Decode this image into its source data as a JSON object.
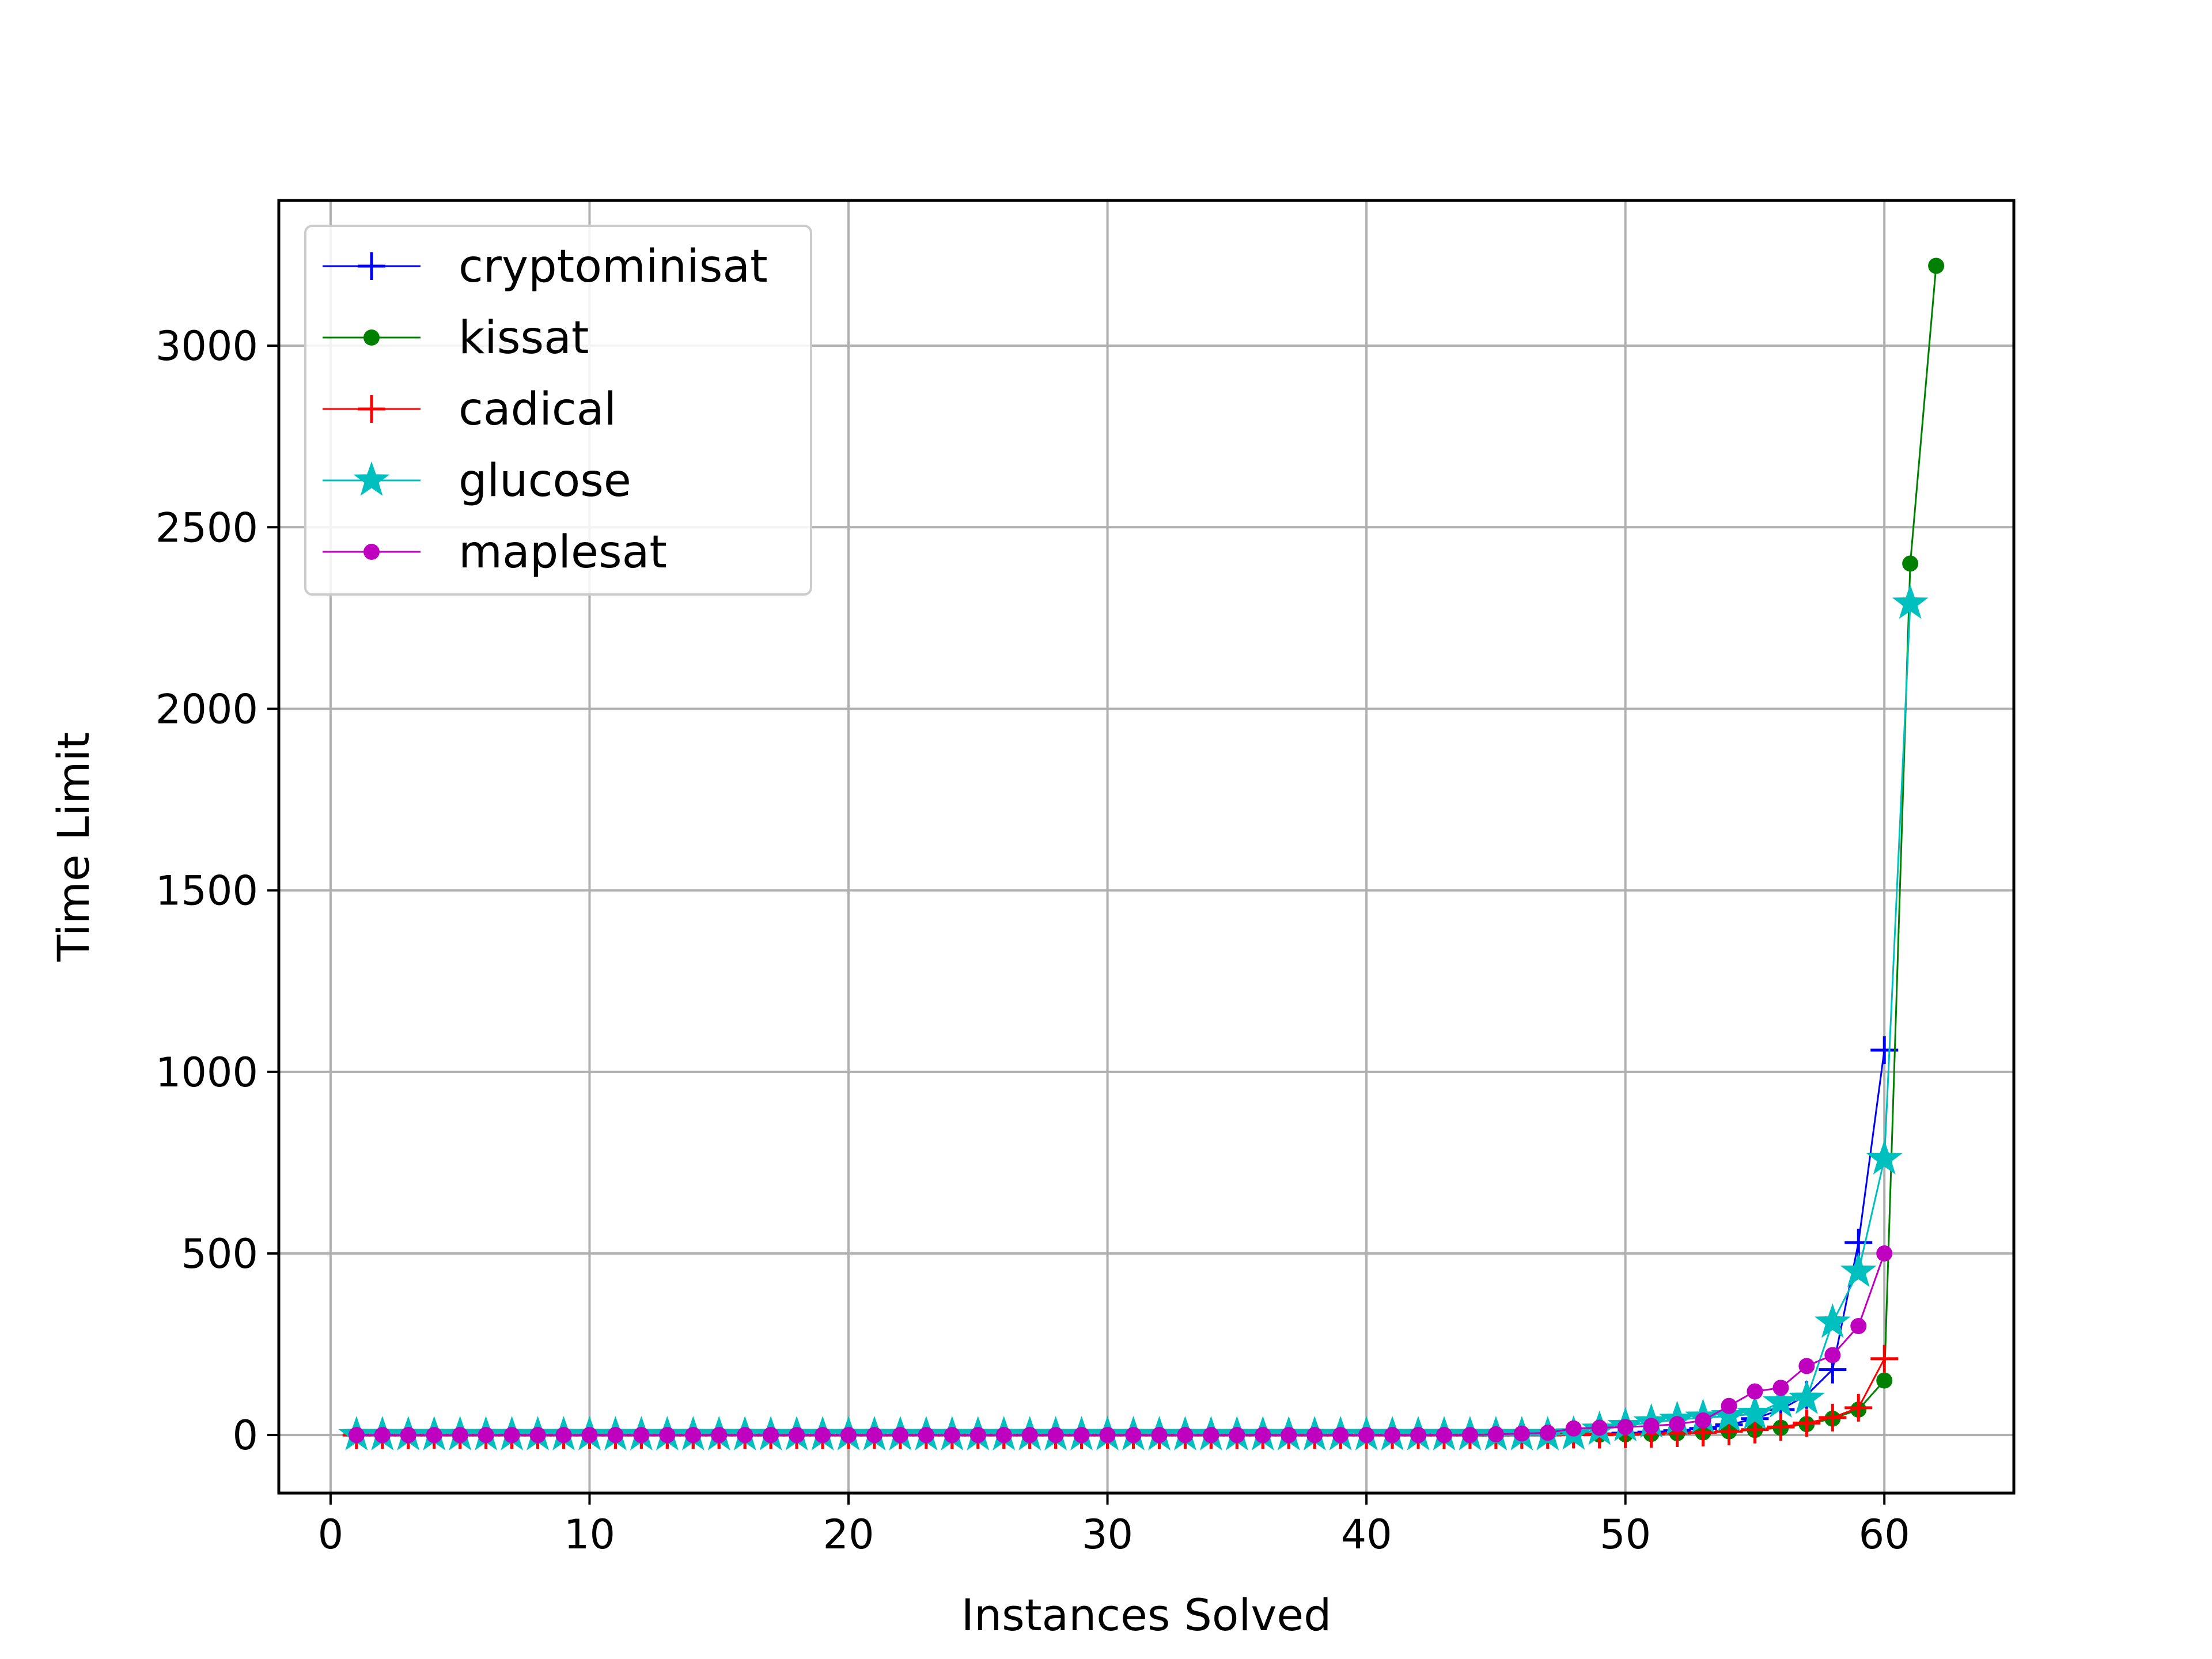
{
  "chart_data": {
    "type": "line",
    "xlabel": "Instances Solved",
    "ylabel": "Time Limit",
    "xlim": [
      -2,
      65
    ],
    "ylim": [
      -160,
      3400
    ],
    "x_ticks": [
      0,
      10,
      20,
      30,
      40,
      50,
      60
    ],
    "y_ticks": [
      0,
      500,
      1000,
      1500,
      2000,
      2500,
      3000
    ],
    "grid": true,
    "legend_position": "top-left",
    "series": [
      {
        "name": "cryptominisat",
        "color": "#0000ff",
        "marker": "plus",
        "x": [
          1,
          2,
          3,
          4,
          5,
          6,
          7,
          8,
          9,
          10,
          11,
          12,
          13,
          14,
          15,
          16,
          17,
          18,
          19,
          20,
          21,
          22,
          23,
          24,
          25,
          26,
          27,
          28,
          29,
          30,
          31,
          32,
          33,
          34,
          35,
          36,
          37,
          38,
          39,
          40,
          41,
          42,
          43,
          44,
          45,
          46,
          47,
          48,
          49,
          50,
          51,
          52,
          53,
          54,
          55,
          56,
          57,
          58,
          59,
          60
        ],
        "y": [
          0,
          0,
          0,
          0,
          0,
          0,
          0,
          0,
          0,
          0,
          0,
          0,
          0,
          0,
          0,
          0,
          0,
          0,
          0,
          0,
          0,
          0,
          0,
          0,
          0,
          0,
          0,
          0,
          0,
          0,
          0,
          0,
          0,
          0,
          0,
          0,
          0,
          0,
          0,
          0,
          0,
          0,
          0,
          0,
          0,
          1,
          1,
          2,
          3,
          5,
          8,
          12,
          18,
          28,
          45,
          70,
          110,
          180,
          530,
          1060
        ]
      },
      {
        "name": "kissat",
        "color": "#008000",
        "marker": "dot",
        "x": [
          1,
          2,
          3,
          4,
          5,
          6,
          7,
          8,
          9,
          10,
          11,
          12,
          13,
          14,
          15,
          16,
          17,
          18,
          19,
          20,
          21,
          22,
          23,
          24,
          25,
          26,
          27,
          28,
          29,
          30,
          31,
          32,
          33,
          34,
          35,
          36,
          37,
          38,
          39,
          40,
          41,
          42,
          43,
          44,
          45,
          46,
          47,
          48,
          49,
          50,
          51,
          52,
          53,
          54,
          55,
          56,
          57,
          58,
          59,
          60,
          61,
          62
        ],
        "y": [
          0,
          0,
          0,
          0,
          0,
          0,
          0,
          0,
          0,
          0,
          0,
          0,
          0,
          0,
          0,
          0,
          0,
          0,
          0,
          0,
          0,
          0,
          0,
          0,
          0,
          0,
          0,
          0,
          0,
          0,
          0,
          0,
          0,
          0,
          0,
          0,
          0,
          0,
          0,
          0,
          0,
          0,
          0,
          0,
          0,
          0,
          0,
          1,
          1,
          2,
          3,
          5,
          7,
          10,
          14,
          20,
          30,
          45,
          70,
          150,
          2400,
          3220
        ]
      },
      {
        "name": "cadical",
        "color": "#ff0000",
        "marker": "plus",
        "x": [
          1,
          2,
          3,
          4,
          5,
          6,
          7,
          8,
          9,
          10,
          11,
          12,
          13,
          14,
          15,
          16,
          17,
          18,
          19,
          20,
          21,
          22,
          23,
          24,
          25,
          26,
          27,
          28,
          29,
          30,
          31,
          32,
          33,
          34,
          35,
          36,
          37,
          38,
          39,
          40,
          41,
          42,
          43,
          44,
          45,
          46,
          47,
          48,
          49,
          50,
          51,
          52,
          53,
          54,
          55,
          56,
          57,
          58,
          59,
          60
        ],
        "y": [
          0,
          0,
          0,
          0,
          0,
          0,
          0,
          0,
          0,
          0,
          0,
          0,
          0,
          0,
          0,
          0,
          0,
          0,
          0,
          0,
          0,
          0,
          0,
          0,
          0,
          0,
          0,
          0,
          0,
          0,
          0,
          0,
          0,
          0,
          0,
          0,
          0,
          0,
          0,
          0,
          0,
          0,
          0,
          0,
          0,
          0,
          0,
          1,
          1,
          2,
          3,
          5,
          7,
          10,
          15,
          22,
          33,
          48,
          75,
          210
        ]
      },
      {
        "name": "glucose",
        "color": "#00bfbf",
        "marker": "star",
        "x": [
          1,
          2,
          3,
          4,
          5,
          6,
          7,
          8,
          9,
          10,
          11,
          12,
          13,
          14,
          15,
          16,
          17,
          18,
          19,
          20,
          21,
          22,
          23,
          24,
          25,
          26,
          27,
          28,
          29,
          30,
          31,
          32,
          33,
          34,
          35,
          36,
          37,
          38,
          39,
          40,
          41,
          42,
          43,
          44,
          45,
          46,
          47,
          48,
          49,
          50,
          51,
          52,
          53,
          54,
          55,
          56,
          57,
          58,
          59,
          60,
          61
        ],
        "y": [
          0,
          0,
          0,
          0,
          0,
          0,
          0,
          0,
          0,
          0,
          0,
          0,
          0,
          0,
          0,
          0,
          0,
          0,
          0,
          0,
          0,
          0,
          0,
          0,
          0,
          0,
          0,
          0,
          0,
          0,
          0,
          0,
          0,
          0,
          0,
          0,
          0,
          0,
          0,
          0,
          0,
          0,
          0,
          0,
          0,
          0,
          0,
          2,
          15,
          25,
          35,
          42,
          48,
          52,
          58,
          90,
          100,
          310,
          450,
          760,
          2290
        ]
      },
      {
        "name": "maplesat",
        "color": "#bf00bf",
        "marker": "dot",
        "x": [
          1,
          2,
          3,
          4,
          5,
          6,
          7,
          8,
          9,
          10,
          11,
          12,
          13,
          14,
          15,
          16,
          17,
          18,
          19,
          20,
          21,
          22,
          23,
          24,
          25,
          26,
          27,
          28,
          29,
          30,
          31,
          32,
          33,
          34,
          35,
          36,
          37,
          38,
          39,
          40,
          41,
          42,
          43,
          44,
          45,
          46,
          47,
          48,
          49,
          50,
          51,
          52,
          53,
          54,
          55,
          56,
          57,
          58,
          59,
          60
        ],
        "y": [
          0,
          0,
          0,
          0,
          0,
          0,
          0,
          0,
          0,
          0,
          0,
          0,
          0,
          0,
          0,
          0,
          0,
          0,
          0,
          0,
          0,
          0,
          0,
          0,
          0,
          0,
          0,
          0,
          0,
          0,
          0,
          0,
          0,
          0,
          0,
          0,
          0,
          0,
          0,
          0,
          0,
          0,
          0,
          0,
          2,
          4,
          6,
          18,
          20,
          22,
          25,
          30,
          40,
          80,
          120,
          130,
          190,
          220,
          300,
          500
        ]
      }
    ]
  }
}
